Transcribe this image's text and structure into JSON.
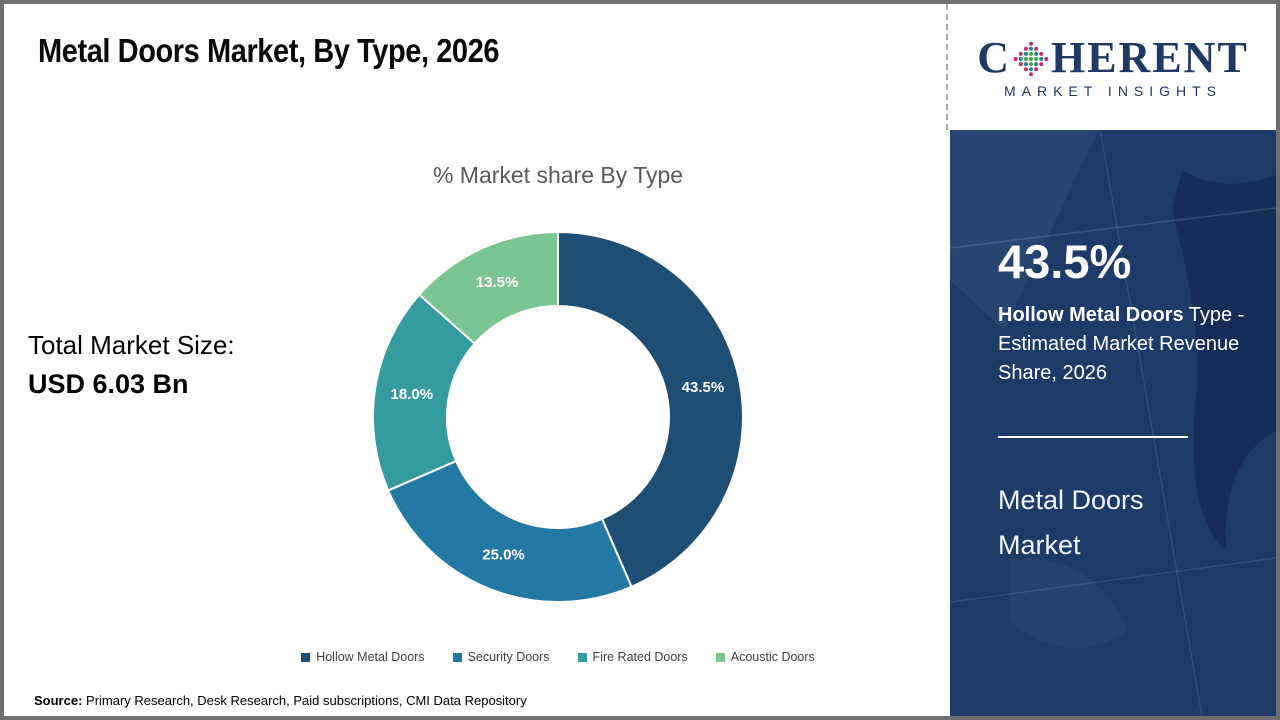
{
  "header": {
    "title": "Metal Doors Market, By Type, 2026"
  },
  "logo": {
    "brand_first": "C",
    "brand_rest": "HERENT",
    "subtitle": "MARKET INSIGHTS",
    "brand_color": "#1f3864",
    "globe_dot_colors": {
      "inner": "#45a63f",
      "middle": "#1e8296",
      "outer": "#c22e6b"
    }
  },
  "main": {
    "total_market_label": "Total Market Size:",
    "total_market_value": "USD 6.03 Bn",
    "source_label": "Source:",
    "source_text": " Primary Research, Desk Research, Paid subscriptions, CMI Data Repository"
  },
  "chart_data": {
    "type": "pie",
    "subtype": "donut",
    "title": "% Market share By Type",
    "categories": [
      "Hollow Metal Doors",
      "Security Doors",
      "Fire Rated Doors",
      "Acoustic Doors"
    ],
    "values": [
      43.5,
      25.0,
      18.0,
      13.5
    ],
    "labels": [
      "43.5%",
      "25.0%",
      "18.0%",
      "13.5%"
    ],
    "colors": [
      "#1f4e74",
      "#2478a4",
      "#349b9e",
      "#7bc592"
    ],
    "start_angle_deg": 0,
    "direction": "clockwise",
    "legend_position": "bottom",
    "label_color": "#ffffff"
  },
  "sidebar": {
    "stat_value": "43.5%",
    "stat_bold": "Hollow Metal Doors",
    "stat_rest": " Type - Estimated Market Revenue Share, 2026",
    "panel_title": "Metal Doors Market",
    "panel_color": "#1d3a69"
  }
}
